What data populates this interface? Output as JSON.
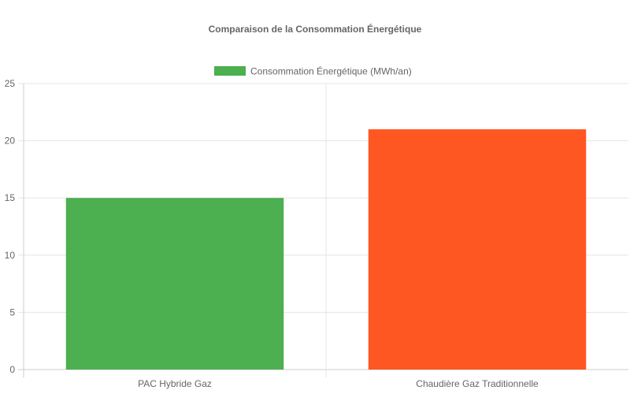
{
  "chart_data": {
    "type": "bar",
    "title": "Comparaison de la Consommation Énergétique",
    "categories": [
      "PAC Hybride Gaz",
      "Chaudière Gaz Traditionnelle"
    ],
    "series": [
      {
        "name": "Consommation Énergétique (MWh/an)",
        "values": [
          15,
          21
        ],
        "colors": [
          "#4caf50",
          "#ff5722"
        ]
      }
    ],
    "legend_color": "#4caf50",
    "ylim": [
      0,
      25
    ],
    "yticks": [
      0,
      5,
      10,
      15,
      20,
      25
    ],
    "grid": true,
    "legend_position": "top"
  }
}
